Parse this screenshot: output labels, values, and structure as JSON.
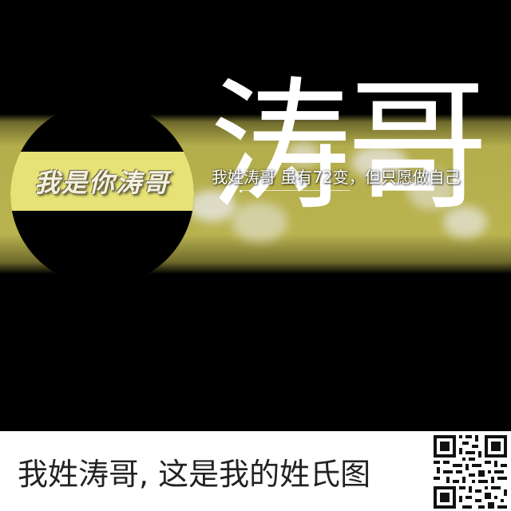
{
  "image": {
    "badge_text": "我是你涛哥",
    "big_name": "涛哥",
    "slogan": "我姓涛哥 虽有72变，但只愿做自己",
    "colors": {
      "background": "#000000",
      "banner": "#b9b34f",
      "badge_band": "#e7e276",
      "text_white": "#ffffff"
    }
  },
  "footer": {
    "caption": "我姓涛哥, 这是我的姓氏图",
    "qr_icon": "qr-code-icon"
  }
}
